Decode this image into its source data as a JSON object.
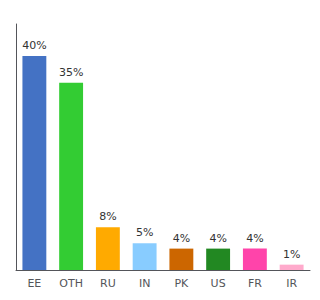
{
  "chart_data": {
    "type": "bar",
    "categories": [
      "EE",
      "OTH",
      "RU",
      "IN",
      "PK",
      "US",
      "FR",
      "IR"
    ],
    "values": [
      40,
      35,
      8,
      5,
      4,
      4,
      4,
      1
    ],
    "value_labels": [
      "40%",
      "35%",
      "8%",
      "5%",
      "4%",
      "4%",
      "4%",
      "1%"
    ],
    "colors": [
      "#4472c4",
      "#33cc33",
      "#ffaa00",
      "#88ccff",
      "#cc6600",
      "#228822",
      "#ff44aa",
      "#ffaacc"
    ],
    "ylim": [
      0,
      46
    ],
    "data_labels": true,
    "tick_labels": "x",
    "grid": false
  }
}
